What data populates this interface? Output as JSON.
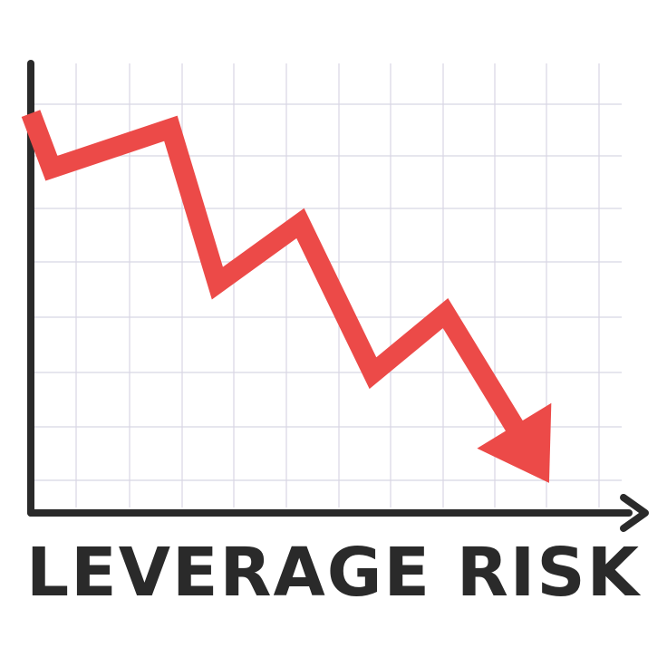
{
  "chart_data": {
    "type": "line",
    "title": "LEVERAGE RISK",
    "xlabel": "",
    "ylabel": "",
    "grid": true,
    "legend": "none",
    "axes": {
      "x_ticks_shown": false,
      "y_ticks_shown": false,
      "x_arrow": true
    },
    "series": [
      {
        "values": [
          {
            "x": 0.0,
            "y": 8.0
          },
          {
            "x": 0.4,
            "y": 6.9
          },
          {
            "x": 2.7,
            "y": 7.7
          },
          {
            "x": 3.6,
            "y": 4.6
          },
          {
            "x": 5.2,
            "y": 5.8
          },
          {
            "x": 6.6,
            "y": 2.8
          },
          {
            "x": 8.0,
            "y": 4.0
          },
          {
            "x": 10.0,
            "y": 0.6
          }
        ],
        "color": "#ec4a48",
        "end_marker": "arrow"
      }
    ],
    "xlim": [
      0,
      11.4
    ],
    "ylim": [
      0,
      9.0
    ],
    "colors": {
      "axis": "#2a2a2a",
      "grid": "#d8d6e4",
      "line": "#ec4a48",
      "title": "#2a2a2a",
      "background": "#ffffff"
    }
  }
}
